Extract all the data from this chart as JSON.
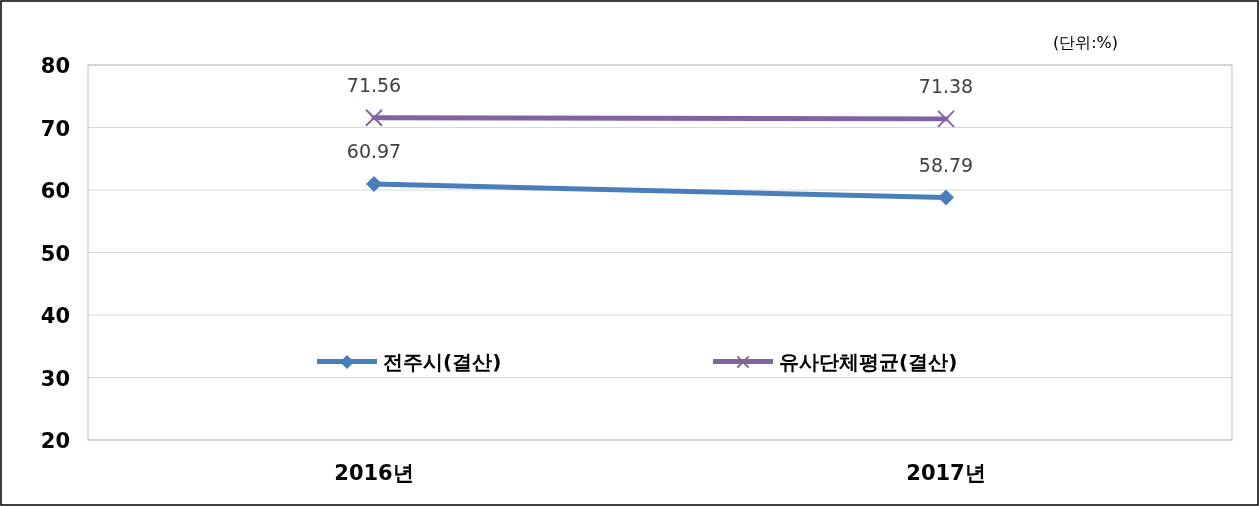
{
  "chart_data": {
    "type": "line",
    "categories": [
      "2016년",
      "2017년"
    ],
    "series": [
      {
        "name": "전주시(결산)",
        "color": "#4a7ebb",
        "marker": "diamond",
        "values": [
          60.97,
          58.79
        ]
      },
      {
        "name": "유사단체평균(결산)",
        "color": "#8064a2",
        "marker": "cross",
        "values": [
          71.56,
          71.38
        ]
      }
    ],
    "ylim": [
      20,
      80
    ],
    "yticks": [
      20,
      30,
      40,
      50,
      60,
      70,
      80
    ],
    "grid": "y",
    "legend": "bottom",
    "data_labels": true,
    "line_style": "solid",
    "annotations": [
      "(단위:%)"
    ]
  }
}
